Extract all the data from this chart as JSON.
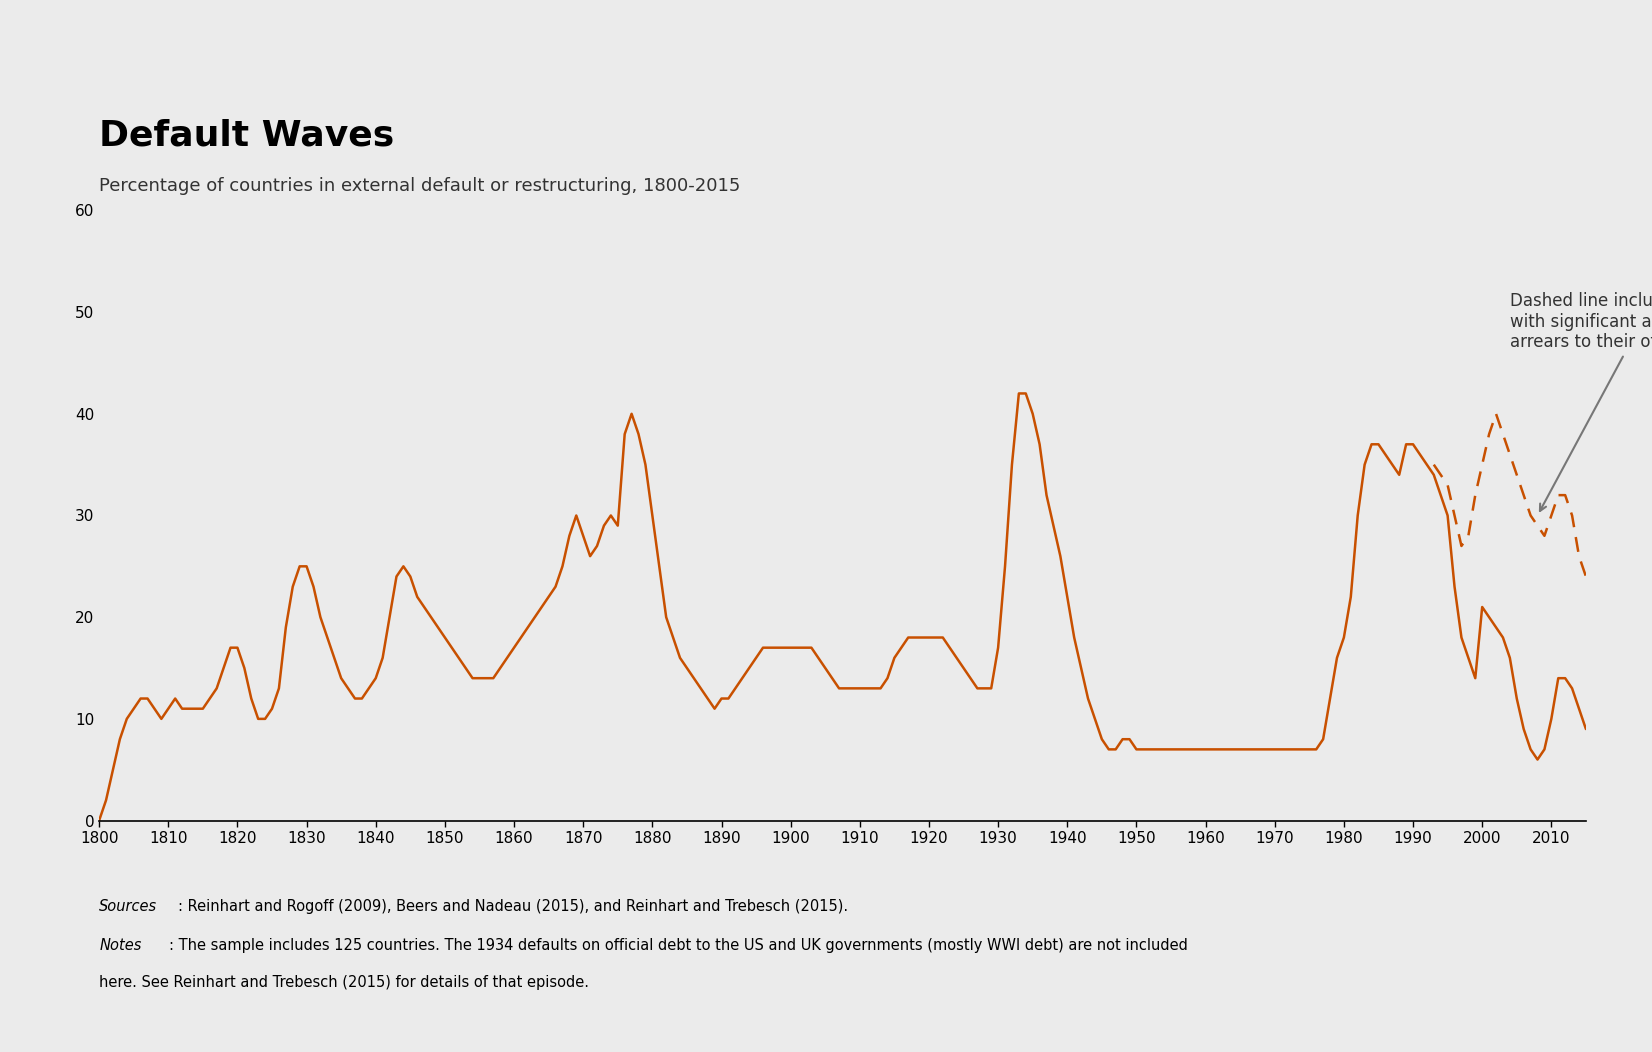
{
  "title": "Default Waves",
  "subtitle": "Percentage of countries in external default or restructuring, 1800-2015",
  "background_color": "#EBEBEB",
  "line_color": "#C85000",
  "annotation_text": "Dashed line includes countries\nwith significant and chronic\narrears to their official creditors",
  "sources_text": "Sources: Reinhart and Rogoff (2009), Beers and Nadeau (2015), and Reinhart and Trebesch (2015).",
  "notes_text": "Notes: The sample includes 125 countries. The 1934 defaults on official debt to the US and UK governments (mostly WWI debt) are not included\nhere. See Reinhart and Trebesch (2015) for details of that episode.",
  "solid_line": {
    "years": [
      1800,
      1801,
      1802,
      1803,
      1804,
      1805,
      1806,
      1807,
      1808,
      1809,
      1810,
      1811,
      1812,
      1813,
      1814,
      1815,
      1816,
      1817,
      1818,
      1819,
      1820,
      1821,
      1822,
      1823,
      1824,
      1825,
      1826,
      1827,
      1828,
      1829,
      1830,
      1831,
      1832,
      1833,
      1834,
      1835,
      1836,
      1837,
      1838,
      1839,
      1840,
      1841,
      1842,
      1843,
      1844,
      1845,
      1846,
      1847,
      1848,
      1849,
      1850,
      1851,
      1852,
      1853,
      1854,
      1855,
      1856,
      1857,
      1858,
      1859,
      1860,
      1861,
      1862,
      1863,
      1864,
      1865,
      1866,
      1867,
      1868,
      1869,
      1870,
      1871,
      1872,
      1873,
      1874,
      1875,
      1876,
      1877,
      1878,
      1879,
      1880,
      1881,
      1882,
      1883,
      1884,
      1885,
      1886,
      1887,
      1888,
      1889,
      1890,
      1891,
      1892,
      1893,
      1894,
      1895,
      1896,
      1897,
      1898,
      1899,
      1900,
      1901,
      1902,
      1903,
      1904,
      1905,
      1906,
      1907,
      1908,
      1909,
      1910,
      1911,
      1912,
      1913,
      1914,
      1915,
      1916,
      1917,
      1918,
      1919,
      1920,
      1921,
      1922,
      1923,
      1924,
      1925,
      1926,
      1927,
      1928,
      1929,
      1930,
      1931,
      1932,
      1933,
      1934,
      1935,
      1936,
      1937,
      1938,
      1939,
      1940,
      1941,
      1942,
      1943,
      1944,
      1945,
      1946,
      1947,
      1948,
      1949,
      1950,
      1951,
      1952,
      1953,
      1954,
      1955,
      1956,
      1957,
      1958,
      1959,
      1960,
      1961,
      1962,
      1963,
      1964,
      1965,
      1966,
      1967,
      1968,
      1969,
      1970,
      1971,
      1972,
      1973,
      1974,
      1975,
      1976,
      1977,
      1978,
      1979,
      1980,
      1981,
      1982,
      1983,
      1984,
      1985,
      1986,
      1987,
      1988,
      1989,
      1990,
      1991,
      1992,
      1993,
      1994,
      1995,
      1996,
      1997,
      1998,
      1999,
      2000,
      2001,
      2002,
      2003,
      2004,
      2005,
      2006,
      2007,
      2008,
      2009,
      2010,
      2011,
      2012,
      2013,
      2014,
      2015
    ],
    "values": [
      0,
      2,
      5,
      8,
      10,
      11,
      12,
      12,
      11,
      10,
      11,
      12,
      11,
      11,
      11,
      11,
      12,
      13,
      15,
      17,
      17,
      15,
      12,
      10,
      10,
      11,
      13,
      19,
      23,
      25,
      25,
      23,
      20,
      18,
      16,
      14,
      13,
      12,
      12,
      13,
      14,
      16,
      20,
      24,
      25,
      24,
      22,
      21,
      20,
      19,
      18,
      17,
      16,
      15,
      14,
      14,
      14,
      14,
      15,
      16,
      17,
      18,
      19,
      20,
      21,
      22,
      23,
      25,
      28,
      30,
      28,
      26,
      27,
      29,
      30,
      29,
      38,
      40,
      38,
      35,
      30,
      25,
      20,
      18,
      16,
      15,
      14,
      13,
      12,
      11,
      12,
      12,
      13,
      14,
      15,
      16,
      17,
      17,
      17,
      17,
      17,
      17,
      17,
      17,
      16,
      15,
      14,
      13,
      13,
      13,
      13,
      13,
      13,
      13,
      14,
      16,
      17,
      18,
      18,
      18,
      18,
      18,
      18,
      17,
      16,
      15,
      14,
      13,
      13,
      13,
      17,
      25,
      35,
      42,
      42,
      40,
      37,
      32,
      29,
      26,
      22,
      18,
      15,
      12,
      10,
      8,
      7,
      7,
      8,
      8,
      7,
      7,
      7,
      7,
      7,
      7,
      7,
      7,
      7,
      7,
      7,
      7,
      7,
      7,
      7,
      7,
      7,
      7,
      7,
      7,
      7,
      7,
      7,
      7,
      7,
      7,
      7,
      8,
      12,
      16,
      18,
      22,
      30,
      35,
      37,
      37,
      36,
      35,
      34,
      37,
      37,
      36,
      35,
      34,
      32,
      30,
      23,
      18,
      16,
      14,
      21,
      20,
      19,
      18,
      16,
      12,
      9,
      7,
      6,
      7,
      10,
      14,
      14,
      13,
      11,
      9
    ]
  },
  "dashed_line": {
    "years": [
      1993,
      1994,
      1995,
      1996,
      1997,
      1998,
      1999,
      2000,
      2001,
      2002,
      2003,
      2004,
      2005,
      2006,
      2007,
      2008,
      2009,
      2010,
      2011,
      2012,
      2013,
      2014,
      2015
    ],
    "values": [
      35,
      34,
      33,
      30,
      27,
      28,
      32,
      35,
      38,
      40,
      38,
      36,
      34,
      32,
      30,
      29,
      28,
      30,
      32,
      32,
      30,
      26,
      24
    ]
  },
  "ylim": [
    0,
    60
  ],
  "xlim": [
    1800,
    2015
  ],
  "yticks": [
    0,
    10,
    20,
    30,
    40,
    50,
    60
  ],
  "xticks": [
    1800,
    1810,
    1820,
    1830,
    1840,
    1850,
    1860,
    1870,
    1880,
    1890,
    1900,
    1910,
    1920,
    1930,
    1940,
    1950,
    1960,
    1970,
    1980,
    1990,
    2000,
    2010
  ]
}
